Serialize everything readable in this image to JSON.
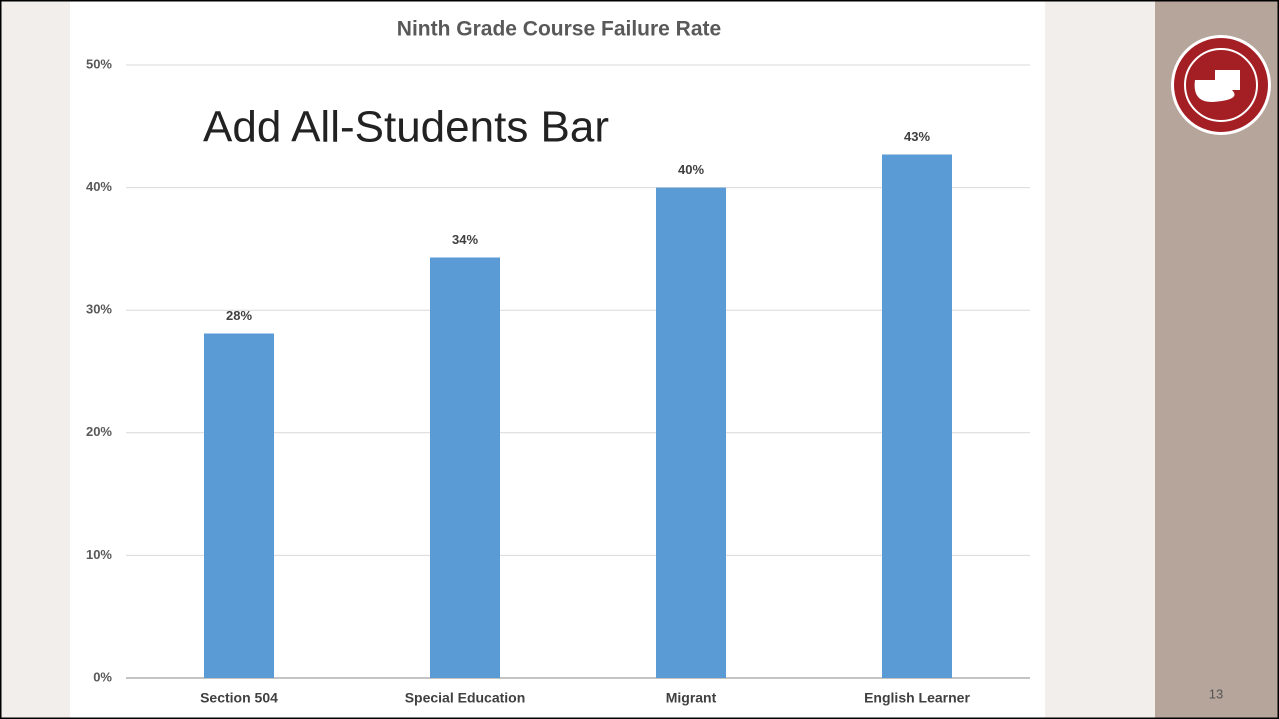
{
  "slide_text": "Add All-Students Bar",
  "page_number": "13",
  "chart_data": {
    "type": "bar",
    "title": "Ninth Grade Course Failure Rate",
    "categories": [
      "Section 504",
      "Special Education",
      "Migrant",
      "English Learner"
    ],
    "values": [
      28.1,
      34.3,
      40.0,
      42.7
    ],
    "value_labels": [
      "28%",
      "34%",
      "40%",
      "43%"
    ],
    "color": "#5b9bd5",
    "ylim": [
      0,
      50
    ],
    "yticks": [
      {
        "value": 0,
        "label": "0%"
      },
      {
        "value": 10,
        "label": "10%"
      },
      {
        "value": 20,
        "label": "20%"
      },
      {
        "value": 30,
        "label": "30%"
      },
      {
        "value": 40,
        "label": "40%"
      },
      {
        "value": 50,
        "label": "50%"
      }
    ],
    "grid": true
  }
}
